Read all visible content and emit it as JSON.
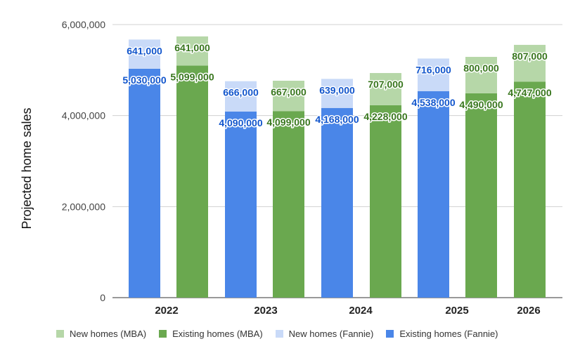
{
  "chart_data": {
    "type": "bar",
    "stacked": true,
    "ylabel": "Projected home sales",
    "xlabel": "",
    "ylim": [
      0,
      6000000
    ],
    "yticks": [
      0,
      2000000,
      4000000,
      6000000
    ],
    "ytick_labels": [
      "0",
      "2,000,000",
      "4,000,000",
      "6,000,000"
    ],
    "grid": true,
    "legend_position": "bottom",
    "categories": [
      "2022",
      "2023",
      "2024",
      "2025",
      "2026"
    ],
    "series": [
      {
        "name": "New homes (MBA)",
        "group": "MBA",
        "color": "#b6d7a8",
        "labelColor": "#38761d",
        "values": [
          641000,
          667000,
          707000,
          800000,
          807000
        ],
        "labels": [
          "641,000",
          "667,000",
          "707,000",
          "800,000",
          "807,000"
        ]
      },
      {
        "name": "Existing homes (MBA)",
        "group": "MBA",
        "color": "#6aa84f",
        "labelColor": "#38761d",
        "values": [
          5099000,
          4099000,
          4228000,
          4490000,
          4747000
        ],
        "labels": [
          "5,099,000",
          "4,099,000",
          "4,228,000",
          "4,490,000",
          "4,747,000"
        ]
      },
      {
        "name": "New homes (Fannie)",
        "group": "Fannie",
        "color": "#c9daf8",
        "labelColor": "#1155cc",
        "values": [
          641000,
          666000,
          639000,
          716000,
          null
        ],
        "labels": [
          "641,000",
          "666,000",
          "639,000",
          "716,000",
          ""
        ]
      },
      {
        "name": "Existing homes (Fannie)",
        "group": "Fannie",
        "color": "#4a86e8",
        "labelColor": "#1155cc",
        "values": [
          5030000,
          4090000,
          4168000,
          4538000,
          null
        ],
        "labels": [
          "5,030,000",
          "4,090,000",
          "4,168,000",
          "4,538,000",
          ""
        ]
      }
    ]
  }
}
